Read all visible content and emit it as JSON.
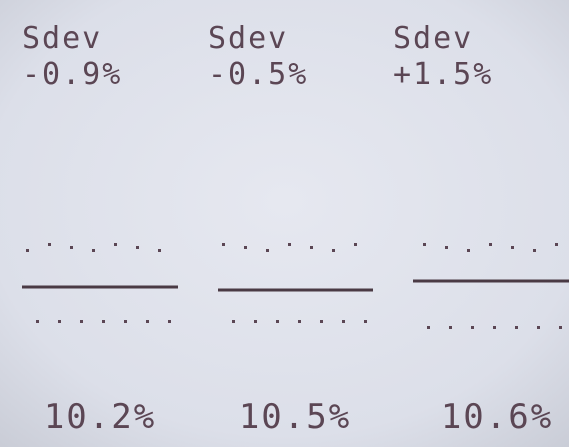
{
  "columns": [
    {
      "label": "Sdev",
      "deviation": "-0.9%",
      "value": "10.2%"
    },
    {
      "label": "Sdev",
      "deviation": "-0.5%",
      "value": "10.5%"
    },
    {
      "label": "Sdev",
      "deviation": "+1.5%",
      "value": "10.6%"
    }
  ]
}
